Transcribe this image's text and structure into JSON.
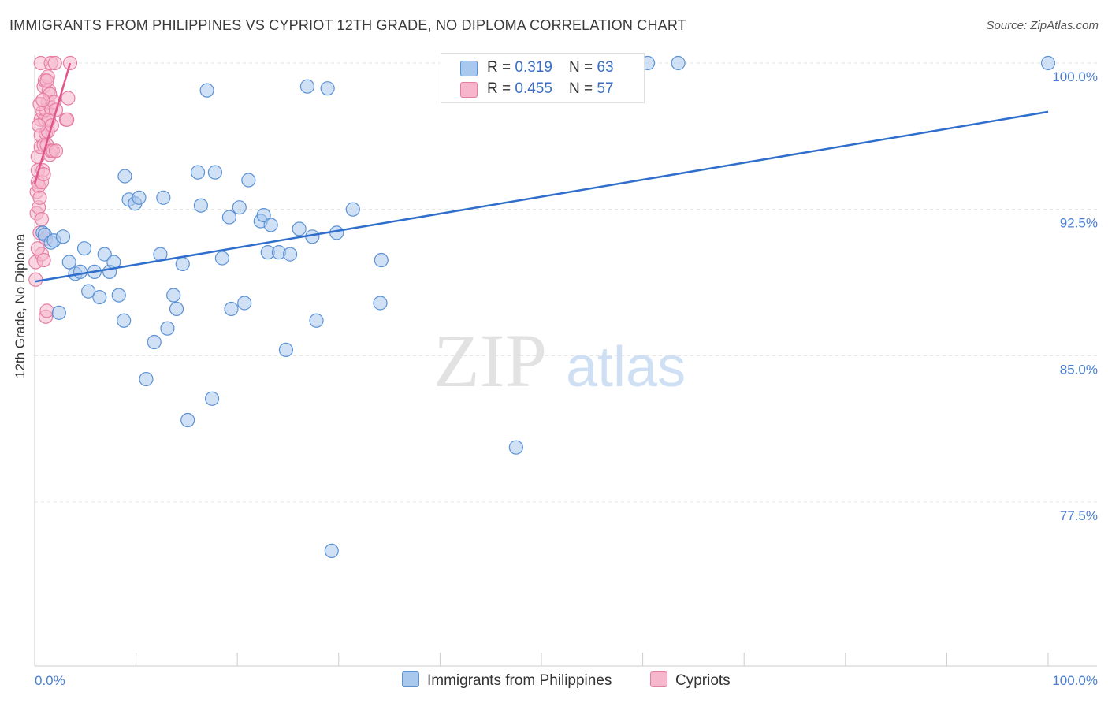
{
  "title": "IMMIGRANTS FROM PHILIPPINES VS CYPRIOT 12TH GRADE, NO DIPLOMA CORRELATION CHART",
  "source": "Source: ZipAtlas.com",
  "watermark_zip": "ZIP",
  "watermark_atlas": "atlas",
  "legend_top": [
    {
      "r_label": "R = ",
      "r_value": "0.319",
      "n_label": "N = ",
      "n_value": "63"
    },
    {
      "r_label": "R = ",
      "r_value": "0.455",
      "n_label": "N = ",
      "n_value": "57"
    }
  ],
  "colors": {
    "blue_fill": "#a9c8ee",
    "blue_stroke": "#5b92d6",
    "blue_line": "#2f6fcb",
    "pink_fill": "#f6b7cc",
    "pink_stroke": "#e67ea3",
    "pink_line": "#e2558a",
    "tick_text": "#4a7fd0"
  },
  "chart_data": {
    "type": "scatter",
    "title": "IMMIGRANTS FROM PHILIPPINES VS CYPRIOT 12TH GRADE, NO DIPLOMA CORRELATION CHART",
    "xlabel": "",
    "ylabel": "12th Grade, No Diploma",
    "xlim": [
      0,
      100
    ],
    "ylim": [
      71.6,
      100.7
    ],
    "x_tick_labels": [
      "0.0%",
      "100.0%"
    ],
    "y_ticks": [
      {
        "value": 100.0,
        "label": "100.0%"
      },
      {
        "value": 92.5,
        "label": "92.5%"
      },
      {
        "value": 85.0,
        "label": "85.0%"
      },
      {
        "value": 77.5,
        "label": "77.5%"
      }
    ],
    "grid": "horizontal-dashed",
    "legend_position": "bottom",
    "series": [
      {
        "name": "Immigrants from Philippines",
        "color": "#a9c8ee",
        "trend": [
          [
            0,
            88.8
          ],
          [
            100,
            97.5
          ]
        ],
        "points": [
          [
            0.8,
            91.3
          ],
          [
            1.0,
            91.2
          ],
          [
            1.6,
            90.8
          ],
          [
            1.9,
            90.9
          ],
          [
            2.4,
            87.2
          ],
          [
            2.8,
            91.1
          ],
          [
            3.4,
            89.8
          ],
          [
            4.0,
            89.2
          ],
          [
            4.5,
            89.3
          ],
          [
            4.9,
            90.5
          ],
          [
            5.3,
            88.3
          ],
          [
            5.9,
            89.3
          ],
          [
            6.4,
            88.0
          ],
          [
            6.9,
            90.2
          ],
          [
            7.4,
            89.3
          ],
          [
            7.8,
            89.8
          ],
          [
            8.3,
            88.1
          ],
          [
            8.8,
            86.8
          ],
          [
            8.9,
            94.2
          ],
          [
            9.3,
            93.0
          ],
          [
            9.9,
            92.8
          ],
          [
            10.3,
            93.1
          ],
          [
            11.0,
            83.8
          ],
          [
            11.8,
            85.7
          ],
          [
            12.4,
            90.2
          ],
          [
            12.7,
            93.1
          ],
          [
            13.1,
            86.4
          ],
          [
            13.7,
            88.1
          ],
          [
            14.0,
            87.4
          ],
          [
            14.6,
            89.7
          ],
          [
            15.1,
            81.7
          ],
          [
            16.1,
            94.4
          ],
          [
            16.4,
            92.7
          ],
          [
            17.0,
            98.6
          ],
          [
            17.5,
            82.8
          ],
          [
            17.8,
            94.4
          ],
          [
            18.5,
            90.0
          ],
          [
            19.2,
            92.1
          ],
          [
            19.4,
            87.4
          ],
          [
            20.2,
            92.6
          ],
          [
            20.7,
            87.7
          ],
          [
            21.1,
            94.0
          ],
          [
            22.3,
            91.9
          ],
          [
            22.6,
            92.2
          ],
          [
            23.0,
            90.3
          ],
          [
            23.3,
            91.7
          ],
          [
            24.1,
            90.3
          ],
          [
            24.8,
            85.3
          ],
          [
            25.2,
            90.2
          ],
          [
            26.1,
            91.5
          ],
          [
            26.9,
            98.8
          ],
          [
            27.4,
            91.1
          ],
          [
            27.8,
            86.8
          ],
          [
            28.9,
            98.7
          ],
          [
            29.3,
            75.0
          ],
          [
            29.8,
            91.3
          ],
          [
            31.4,
            92.5
          ],
          [
            34.1,
            87.7
          ],
          [
            34.2,
            89.9
          ],
          [
            47.5,
            80.3
          ],
          [
            60.5,
            100.0
          ],
          [
            63.5,
            100.0
          ],
          [
            100.0,
            100.0
          ]
        ]
      },
      {
        "name": "Cypriots",
        "color": "#f6b7cc",
        "trend": [
          [
            0,
            93.8
          ],
          [
            3.5,
            100.0
          ]
        ],
        "points": [
          [
            0.1,
            88.9
          ],
          [
            0.1,
            89.8
          ],
          [
            0.2,
            92.3
          ],
          [
            0.2,
            93.4
          ],
          [
            0.3,
            93.9
          ],
          [
            0.3,
            94.5
          ],
          [
            0.3,
            95.2
          ],
          [
            0.4,
            92.6
          ],
          [
            0.4,
            93.7
          ],
          [
            0.5,
            91.3
          ],
          [
            0.5,
            93.1
          ],
          [
            0.6,
            95.7
          ],
          [
            0.6,
            96.3
          ],
          [
            0.6,
            97.1
          ],
          [
            0.6,
            100.0
          ],
          [
            0.7,
            90.2
          ],
          [
            0.7,
            92.0
          ],
          [
            0.7,
            93.9
          ],
          [
            0.8,
            94.5
          ],
          [
            0.8,
            97.5
          ],
          [
            0.9,
            89.9
          ],
          [
            0.9,
            95.8
          ],
          [
            0.9,
            98.8
          ],
          [
            1.0,
            97.1
          ],
          [
            1.0,
            99.1
          ],
          [
            1.1,
            87.0
          ],
          [
            1.1,
            91.0
          ],
          [
            1.1,
            96.4
          ],
          [
            1.1,
            97.6
          ],
          [
            1.2,
            87.3
          ],
          [
            1.2,
            95.8
          ],
          [
            1.3,
            96.5
          ],
          [
            1.3,
            98.0
          ],
          [
            1.3,
            99.3
          ],
          [
            1.4,
            97.1
          ],
          [
            1.4,
            98.6
          ],
          [
            1.5,
            95.3
          ],
          [
            1.5,
            98.4
          ],
          [
            1.6,
            95.5
          ],
          [
            1.6,
            97.7
          ],
          [
            1.6,
            100.0
          ],
          [
            1.7,
            96.8
          ],
          [
            1.8,
            95.5
          ],
          [
            1.9,
            98.0
          ],
          [
            2.0,
            100.0
          ],
          [
            2.1,
            97.6
          ],
          [
            2.1,
            95.5
          ],
          [
            0.4,
            96.8
          ],
          [
            0.5,
            97.9
          ],
          [
            0.8,
            98.1
          ],
          [
            0.9,
            94.3
          ],
          [
            1.2,
            99.1
          ],
          [
            3.1,
            97.1
          ],
          [
            3.2,
            97.1
          ],
          [
            3.3,
            98.2
          ],
          [
            3.5,
            100.0
          ],
          [
            0.3,
            90.5
          ]
        ]
      }
    ]
  }
}
